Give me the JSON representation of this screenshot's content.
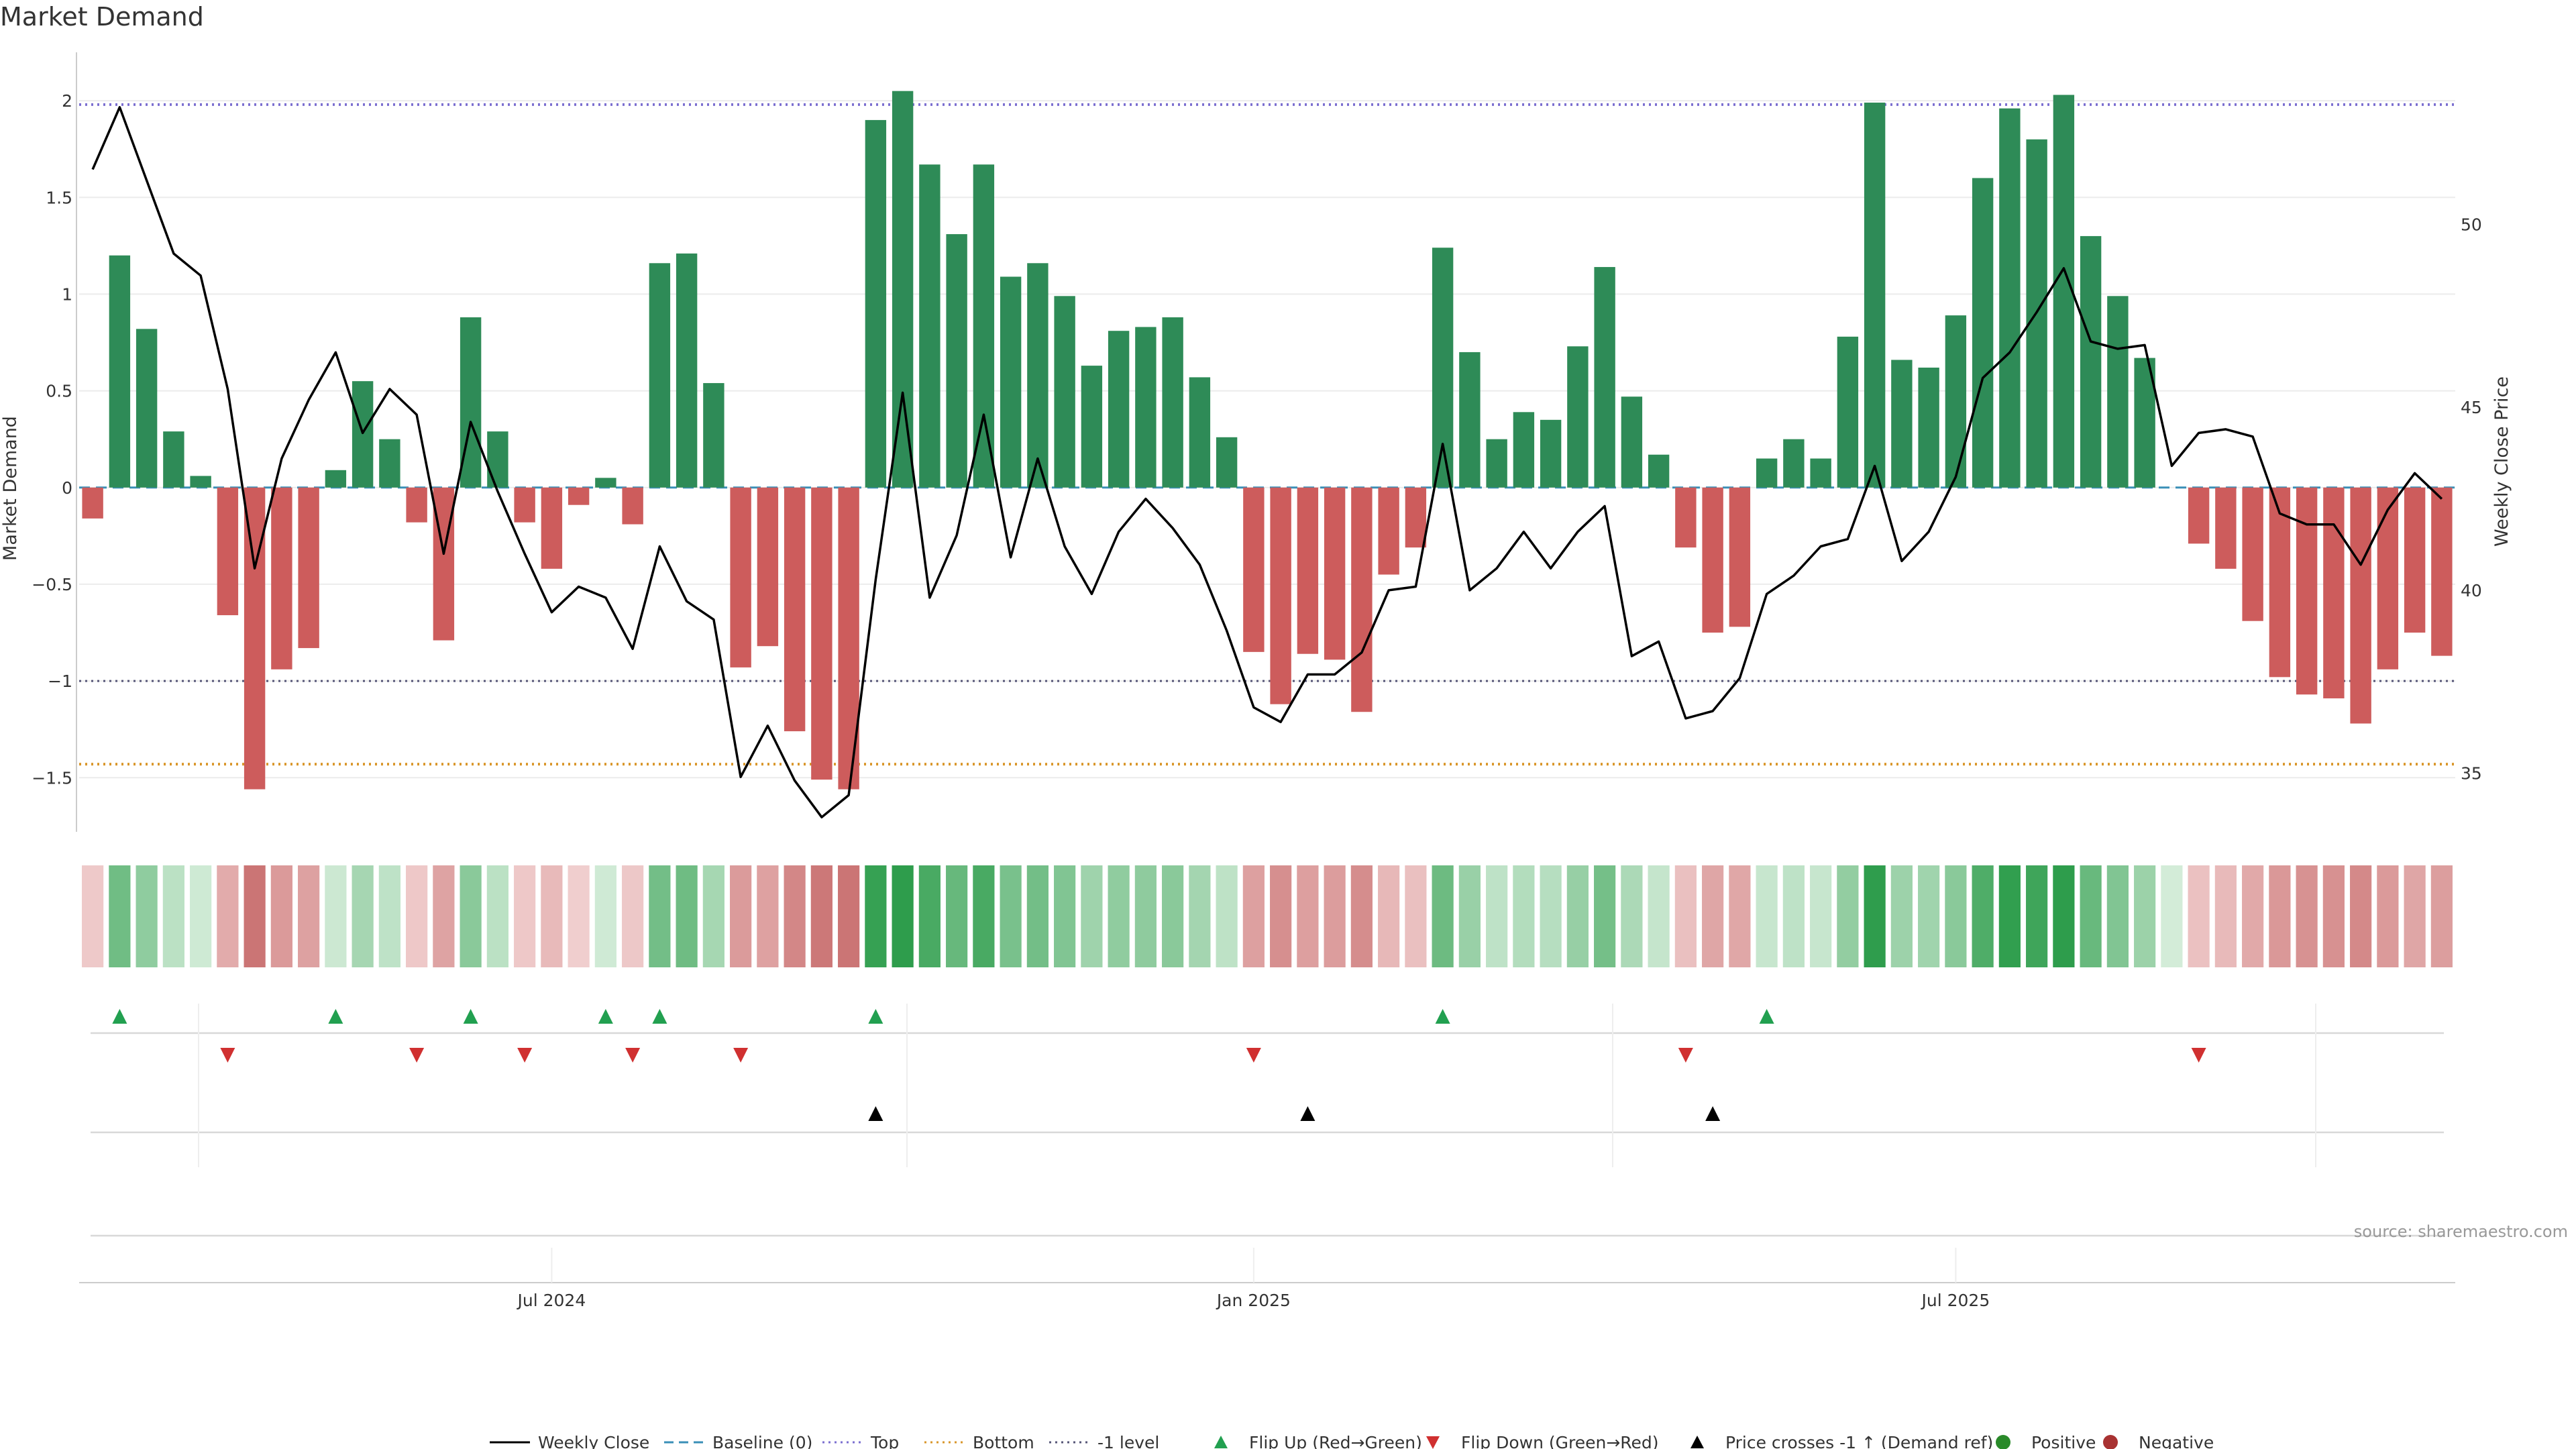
{
  "title": "Market Demand",
  "source": "source: sharemaestro.com",
  "colors": {
    "positive": "#2e8b57",
    "negative": "#cd5c5c",
    "price_line": "#000000",
    "baseline": "#3a8fb7",
    "top": "#7b6fd0",
    "bottom": "#d9962a",
    "minus_one": "#555577",
    "flip_up": "#22a050",
    "flip_down": "#d03030",
    "cross": "#000000",
    "heat_pos_strong": "#2e9d4c",
    "heat_pos_weak": "#d3ecd8",
    "heat_neg_strong": "#c05a5a",
    "heat_neg_weak": "#f2d3d3",
    "positive_dot": "#2a8a2a",
    "negative_dot": "#a83232"
  },
  "chart_data": {
    "type": "bar",
    "title": "Market Demand",
    "ylabel": "Market Demand",
    "y2label": "Weekly Close Price",
    "ylim": [
      -1.78,
      2.25
    ],
    "y2lim": [
      33.4,
      54.7
    ],
    "yticks": [
      "2",
      "1.5",
      "1",
      "0.5",
      "0",
      "−0.5",
      "−1",
      "−1.5"
    ],
    "y2ticks": [
      "50",
      "45",
      "40",
      "35"
    ],
    "xticks": [
      "Jul 2024",
      "Jan 2025",
      "Jul 2025"
    ],
    "xtick_week_index": [
      17.5,
      43.5,
      69.5
    ],
    "reference_lines": {
      "top": 1.98,
      "bottom": -1.43,
      "minus_one": -1.0,
      "baseline": 0
    },
    "demand": [
      -0.16,
      1.2,
      0.82,
      0.29,
      0.06,
      -0.66,
      -1.56,
      -0.94,
      -0.83,
      0.09,
      0.55,
      0.25,
      -0.18,
      -0.79,
      0.88,
      0.29,
      -0.18,
      -0.42,
      -0.09,
      0.05,
      -0.19,
      1.16,
      1.21,
      0.54,
      -0.93,
      -0.82,
      -1.26,
      -1.51,
      -1.56,
      1.9,
      2.05,
      1.67,
      1.31,
      1.67,
      1.09,
      1.16,
      0.99,
      0.63,
      0.81,
      0.83,
      0.88,
      0.57,
      0.26,
      -0.85,
      -1.12,
      -0.86,
      -0.89,
      -1.16,
      -0.45,
      -0.31,
      1.24,
      0.7,
      0.25,
      0.39,
      0.35,
      0.73,
      1.14,
      0.47,
      0.17,
      -0.31,
      -0.75,
      -0.72,
      0.15,
      0.25,
      0.15,
      0.78,
      1.99,
      0.66,
      0.62,
      0.89,
      1.6,
      1.96,
      1.8,
      2.03,
      1.3,
      0.99,
      0.67,
      0.0,
      -0.29,
      -0.42,
      -0.69,
      -0.98,
      -1.07,
      -1.09,
      -1.22,
      -0.94,
      -0.75,
      -0.87
    ],
    "price": [
      51.5,
      53.2,
      51.2,
      49.2,
      48.6,
      45.5,
      40.6,
      43.6,
      45.2,
      46.5,
      44.3,
      45.5,
      44.8,
      41.0,
      44.6,
      42.7,
      41.0,
      39.4,
      40.1,
      39.8,
      38.4,
      41.2,
      39.7,
      39.2,
      34.9,
      36.3,
      34.8,
      33.8,
      34.4,
      40.3,
      45.4,
      39.8,
      41.5,
      44.8,
      40.9,
      43.6,
      41.2,
      39.9,
      41.6,
      42.5,
      41.7,
      40.7,
      38.9,
      36.8,
      36.4,
      37.7,
      37.7,
      38.3,
      40.0,
      40.1,
      44.0,
      40.0,
      40.6,
      41.6,
      40.6,
      41.6,
      42.3,
      38.2,
      38.6,
      36.5,
      36.7,
      37.6,
      39.9,
      40.4,
      41.2,
      41.4,
      43.4,
      40.8,
      41.6,
      43.1,
      45.8,
      46.5,
      47.6,
      48.8,
      46.8,
      46.6,
      46.7,
      43.4,
      44.3,
      44.4,
      44.2,
      42.1,
      41.8,
      41.8,
      40.7,
      42.2,
      43.2,
      42.5
    ],
    "flip_up_week_index": [
      1,
      9,
      14,
      19,
      21,
      29,
      50,
      62
    ],
    "flip_down_week_index": [
      5,
      12,
      16,
      20,
      24,
      43,
      59,
      78
    ],
    "cross_week_index": [
      29,
      45,
      60
    ],
    "legend_position": "bottom"
  },
  "legend": [
    {
      "label": "Weekly Close",
      "kind": "line-solid",
      "color": "#000000"
    },
    {
      "label": "Baseline (0)",
      "kind": "line-dashed",
      "color": "#3a8fb7"
    },
    {
      "label": "Top",
      "kind": "line-dotted",
      "color": "#7b6fd0"
    },
    {
      "label": "Bottom",
      "kind": "line-dotted",
      "color": "#d9962a"
    },
    {
      "label": "-1 level",
      "kind": "line-dotted",
      "color": "#555577"
    },
    {
      "label": "Flip Up (Red→Green)",
      "kind": "tri-up",
      "color": "#22a050"
    },
    {
      "label": "Flip Down (Green→Red)",
      "kind": "tri-down",
      "color": "#d03030"
    },
    {
      "label": "Price crosses -1 ↑ (Demand ref)",
      "kind": "tri-up",
      "color": "#000000"
    },
    {
      "label": "Positive",
      "kind": "dot",
      "color": "#2a8a2a"
    },
    {
      "label": "Negative",
      "kind": "dot",
      "color": "#a83232"
    }
  ]
}
